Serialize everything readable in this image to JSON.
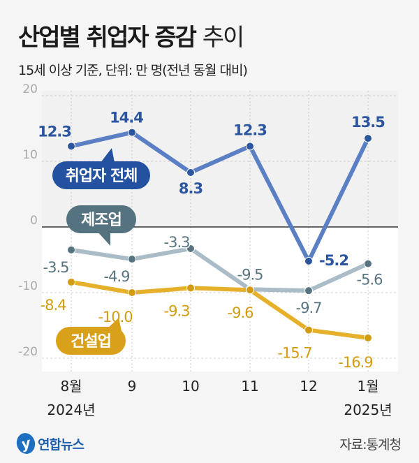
{
  "title": {
    "bold": "산업별 취업자 증감",
    "light": "추이"
  },
  "subtitle": "15세 이상 기준, 단위: 만 명(전년 동월 대비)",
  "source": "자료:통계청",
  "logo": "연합뉴스",
  "chart_data": {
    "type": "line",
    "categories": [
      "8월",
      "9",
      "10",
      "11",
      "12",
      "1월"
    ],
    "year_labels": [
      "2024년",
      "",
      "",
      "",
      "",
      "2025년"
    ],
    "ylim": [
      -20,
      20
    ],
    "yticks": [
      20,
      10,
      0,
      -10,
      -20
    ],
    "grid": true,
    "series": [
      {
        "name": "취업자 전체",
        "values": [
          12.3,
          14.4,
          8.3,
          12.3,
          -5.2,
          13.5
        ],
        "labels": [
          "12.3",
          "14.4",
          "8.3",
          "12.3",
          "-5.2",
          "13.5"
        ],
        "color": "#5b7fc4",
        "label_color": "#2b559f",
        "tag_color": "#2452a0"
      },
      {
        "name": "제조업",
        "values": [
          -3.5,
          -4.9,
          -3.3,
          -9.5,
          -9.7,
          -5.6
        ],
        "labels": [
          "-3.5",
          "-4.9",
          "-3.3",
          "-9.5",
          "-9.7",
          "-5.6"
        ],
        "color": "#a9bcc7",
        "label_color": "#587480",
        "tag_color": "#54727f"
      },
      {
        "name": "건설업",
        "values": [
          -8.4,
          -10.0,
          -9.3,
          -9.6,
          -15.7,
          -16.9
        ],
        "labels": [
          "-8.4",
          "-10.0",
          "-9.3",
          "-9.6",
          "-15.7",
          "-16.9"
        ],
        "color": "#e6b02a",
        "label_color": "#d39b12",
        "tag_color": "#d9a11a"
      }
    ]
  }
}
